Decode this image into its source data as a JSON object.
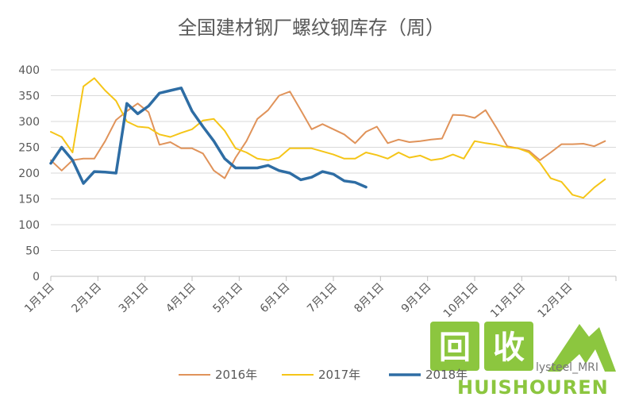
{
  "chart_data": {
    "type": "line",
    "title": "全国建材钢厂螺纹钢库存（周）",
    "xlabel": "",
    "ylabel": "",
    "ylim": [
      0,
      400
    ],
    "yticks": [
      0,
      50,
      100,
      150,
      200,
      250,
      300,
      350,
      400
    ],
    "x_range_weeks": [
      0,
      52
    ],
    "grid": true,
    "legend_position": "bottom",
    "categories": [
      "1月1日",
      "2月1日",
      "3月1日",
      "4月1日",
      "5月1日",
      "6月1日",
      "7月1日",
      "8月1日",
      "9月1日",
      "10月1日",
      "11月1日",
      "12月1日"
    ],
    "series": [
      {
        "name": "2016年",
        "color": "#e0935a",
        "x": [
          0,
          1,
          2,
          3,
          4,
          5,
          6,
          7,
          8,
          9,
          10,
          11,
          12,
          13,
          14,
          15,
          16,
          17,
          18,
          19,
          20,
          21,
          22,
          23,
          24,
          25,
          26,
          27,
          28,
          29,
          30,
          31,
          32,
          33,
          34,
          35,
          36,
          37,
          38,
          39,
          40,
          41,
          42,
          43,
          44,
          45,
          46,
          47,
          48,
          49,
          50,
          51
        ],
        "values": [
          225,
          205,
          225,
          228,
          228,
          262,
          303,
          320,
          335,
          318,
          255,
          260,
          248,
          248,
          238,
          205,
          190,
          230,
          262,
          305,
          322,
          350,
          358,
          322,
          285,
          295,
          285,
          275,
          258,
          280,
          290,
          258,
          265,
          260,
          262,
          265,
          267,
          313,
          312,
          307,
          322,
          288,
          252,
          248,
          243,
          225,
          240,
          256,
          256,
          257,
          252,
          262
        ]
      },
      {
        "name": "2017年",
        "color": "#f5c518",
        "x": [
          0,
          1,
          2,
          3,
          4,
          5,
          6,
          7,
          8,
          9,
          10,
          11,
          12,
          13,
          14,
          15,
          16,
          17,
          18,
          19,
          20,
          21,
          22,
          23,
          24,
          25,
          26,
          27,
          28,
          29,
          30,
          31,
          32,
          33,
          34,
          35,
          36,
          37,
          38,
          39,
          40,
          41,
          42,
          43,
          44,
          45,
          46,
          47,
          48,
          49,
          50,
          51
        ],
        "values": [
          280,
          270,
          240,
          368,
          384,
          360,
          340,
          300,
          290,
          288,
          275,
          270,
          278,
          285,
          302,
          305,
          282,
          248,
          240,
          228,
          225,
          230,
          248,
          248,
          248,
          242,
          236,
          228,
          228,
          240,
          235,
          228,
          240,
          230,
          234,
          225,
          228,
          236,
          228,
          262,
          258,
          255,
          250,
          248,
          240,
          220,
          190,
          183,
          158,
          152,
          172,
          188
        ]
      },
      {
        "name": "2018年",
        "color": "#2e6da4",
        "x": [
          0,
          1,
          2,
          3,
          4,
          5,
          6,
          7,
          8,
          9,
          10,
          11,
          12,
          13,
          14,
          15,
          16,
          17,
          18,
          19,
          20,
          21,
          22,
          23,
          24,
          25,
          26,
          27,
          28,
          29,
          30,
          31,
          32,
          33,
          34,
          35,
          36,
          37,
          38,
          39,
          40,
          41,
          42,
          43,
          44,
          45,
          46,
          47,
          48,
          49,
          50,
          51
        ],
        "values": [
          219,
          250,
          225,
          180,
          203,
          202,
          200,
          335,
          315,
          330,
          355,
          360,
          365,
          320,
          290,
          262,
          228,
          210,
          210,
          210,
          215,
          205,
          200,
          187,
          192,
          203,
          198,
          185,
          182,
          173,
          null,
          null,
          null,
          null,
          null,
          null,
          null,
          null,
          null,
          null,
          null,
          null,
          null,
          null,
          null,
          null,
          null,
          null,
          null,
          null,
          null,
          null
        ]
      }
    ]
  },
  "watermark": {
    "text": "lysteel_MRI",
    "logo_char_1": "回",
    "logo_char_2": "收",
    "brand": "HUISHOUREN"
  }
}
